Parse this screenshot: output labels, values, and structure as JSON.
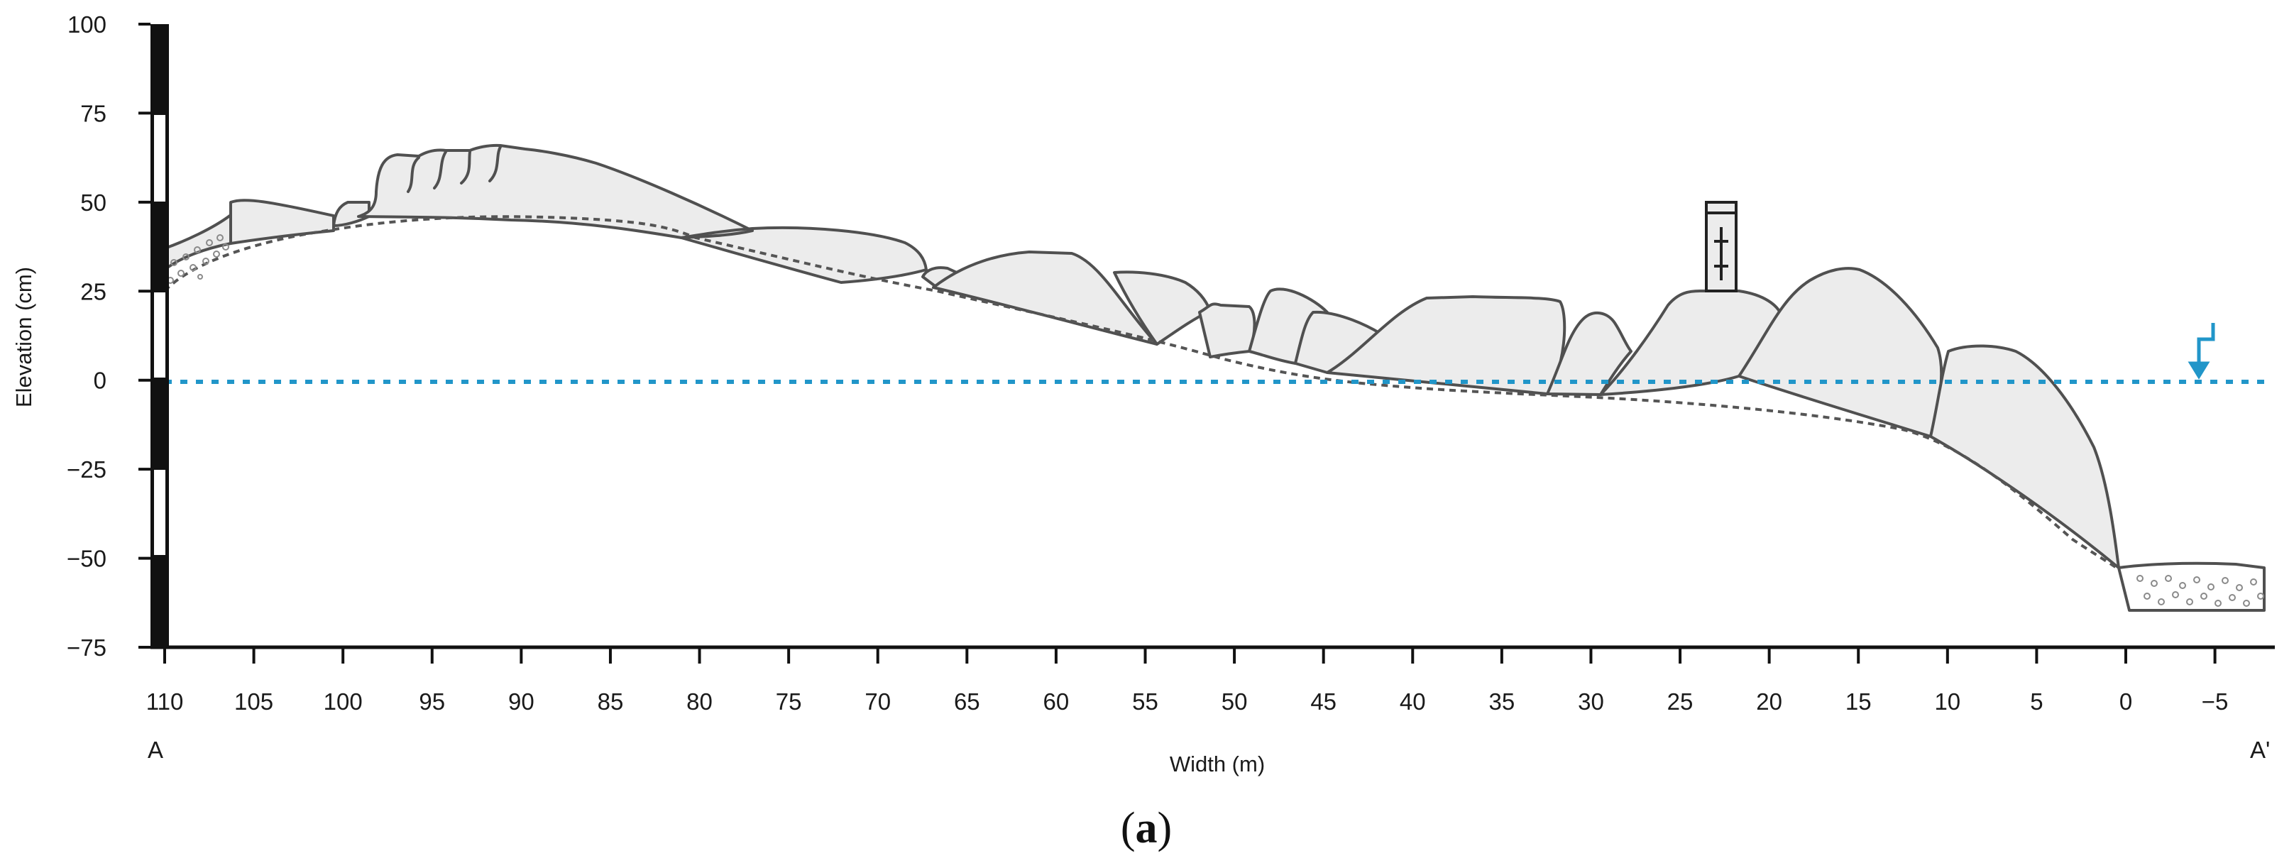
{
  "figure": {
    "caption_open": "(",
    "caption_letter": "a",
    "caption_close": ")",
    "y_axis_title": "Elevation (cm)",
    "x_axis_title": "Width (m)",
    "left_end_label": "A",
    "right_end_label": "A'",
    "y_ticks": [
      "100",
      "75",
      "50",
      "25",
      "0",
      "−25",
      "−50",
      "−75"
    ],
    "y_tick_values": [
      100,
      75,
      50,
      25,
      0,
      -25,
      -50,
      -75
    ],
    "x_ticks": [
      "110",
      "105",
      "100",
      "95",
      "90",
      "85",
      "80",
      "75",
      "70",
      "65",
      "60",
      "55",
      "50",
      "45",
      "40",
      "35",
      "30",
      "25",
      "20",
      "15",
      "10",
      "5",
      "0",
      "−5"
    ],
    "x_tick_values": [
      110,
      105,
      100,
      95,
      90,
      85,
      80,
      75,
      70,
      65,
      60,
      55,
      50,
      45,
      40,
      35,
      30,
      25,
      20,
      15,
      10,
      5,
      0,
      -5
    ],
    "y_range": [
      -75,
      100
    ],
    "x_range": [
      111.5,
      -8.5
    ],
    "water_level_cm": 0,
    "water_marker_width_m": -5.5,
    "colors": {
      "dune_fill": "#ececec",
      "dune_stroke": "#505050",
      "base_line": "#555555",
      "water": "#2196c9",
      "axis": "#111111",
      "gravel_stroke": "#8a8a8a"
    }
  }
}
